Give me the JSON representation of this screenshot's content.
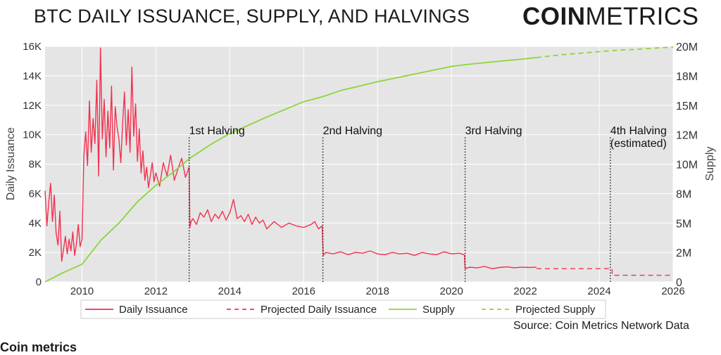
{
  "header": {
    "title": "BTC DAILY ISSUANCE, SUPPLY, AND HALVINGS",
    "logo_bold": "COIN",
    "logo_light": "METRICS"
  },
  "footer": {
    "source": "Source: Coin Metrics Network Data",
    "cut_text": "Coin metrics"
  },
  "colors": {
    "issuance": "#f2314f",
    "supply": "#8ed43a",
    "plot_bg": "#e5e5e5",
    "grid": "#ffffff",
    "halving_line": "#1a1a1a"
  },
  "chart_data": {
    "type": "line",
    "title": "BTC DAILY ISSUANCE, SUPPLY, AND HALVINGS",
    "xlabel": "",
    "ylabel": "Daily Issuance",
    "y2label": "Supply",
    "xlim": [
      2009,
      2026
    ],
    "ylim": [
      0,
      16000
    ],
    "y2lim": [
      0,
      20000000
    ],
    "x_ticks": [
      2010,
      2012,
      2014,
      2016,
      2018,
      2020,
      2022,
      2024,
      2026
    ],
    "x_tick_labels": [
      "2010",
      "2012",
      "2014",
      "2016",
      "2018",
      "2020",
      "2022",
      "2024",
      "2026"
    ],
    "y_ticks": [
      0,
      2000,
      4000,
      6000,
      8000,
      10000,
      12000,
      14000,
      16000
    ],
    "y_tick_labels": [
      "0",
      "2K",
      "4K",
      "6K",
      "8K",
      "10K",
      "12K",
      "14K",
      "16K"
    ],
    "y2_ticks": [
      0,
      2500000,
      5000000,
      7500000,
      10000000,
      12500000,
      15000000,
      17500000,
      20000000
    ],
    "y2_tick_labels": [
      "0",
      "2M",
      "5M",
      "8M",
      "10M",
      "12M",
      "15M",
      "18M",
      "20M"
    ],
    "grid": true,
    "legend_position": "bottom",
    "legend": [
      "Daily Issuance",
      "Projected Daily Issuance",
      "Supply",
      "Projected Supply"
    ],
    "series": [
      {
        "name": "Daily Issuance",
        "axis": "left",
        "style": "solid",
        "x": [
          2009.0,
          2009.05,
          2009.1,
          2009.15,
          2009.2,
          2009.25,
          2009.3,
          2009.35,
          2009.4,
          2009.45,
          2009.5,
          2009.55,
          2009.6,
          2009.65,
          2009.7,
          2009.75,
          2009.8,
          2009.85,
          2009.9,
          2009.95,
          2010.0,
          2010.05,
          2010.1,
          2010.15,
          2010.2,
          2010.25,
          2010.3,
          2010.35,
          2010.4,
          2010.45,
          2010.5,
          2010.55,
          2010.6,
          2010.65,
          2010.7,
          2010.75,
          2010.8,
          2010.85,
          2010.9,
          2010.95,
          2011.0,
          2011.05,
          2011.1,
          2011.15,
          2011.2,
          2011.25,
          2011.3,
          2011.35,
          2011.4,
          2011.45,
          2011.5,
          2011.55,
          2011.6,
          2011.65,
          2011.7,
          2011.75,
          2011.8,
          2011.85,
          2011.9,
          2011.95,
          2012.0,
          2012.1,
          2012.2,
          2012.3,
          2012.4,
          2012.5,
          2012.6,
          2012.7,
          2012.8,
          2012.9,
          2012.92,
          2012.95,
          2013.0,
          2013.1,
          2013.2,
          2013.3,
          2013.4,
          2013.5,
          2013.6,
          2013.7,
          2013.8,
          2013.9,
          2014.0,
          2014.1,
          2014.2,
          2014.3,
          2014.4,
          2014.5,
          2014.6,
          2014.7,
          2014.8,
          2014.9,
          2015.0,
          2015.2,
          2015.4,
          2015.6,
          2015.8,
          2016.0,
          2016.2,
          2016.3,
          2016.4,
          2016.5,
          2016.53,
          2016.6,
          2016.8,
          2017.0,
          2017.2,
          2017.4,
          2017.6,
          2017.8,
          2018.0,
          2018.2,
          2018.4,
          2018.6,
          2018.8,
          2019.0,
          2019.2,
          2019.4,
          2019.6,
          2019.8,
          2020.0,
          2020.2,
          2020.35,
          2020.37,
          2020.5,
          2020.7,
          2020.9,
          2021.1,
          2021.3,
          2021.5,
          2021.7,
          2021.9,
          2022.1,
          2022.3
        ],
        "values": [
          6200,
          3800,
          5400,
          6700,
          4100,
          5900,
          3300,
          2500,
          4800,
          1400,
          2200,
          3100,
          1900,
          2900,
          2100,
          3400,
          1800,
          2600,
          3900,
          2400,
          2900,
          8600,
          10200,
          7900,
          12300,
          8800,
          11100,
          9400,
          13700,
          7200,
          15900,
          9700,
          12400,
          8500,
          11600,
          9100,
          13300,
          7600,
          11900,
          10500,
          9700,
          8100,
          10800,
          12900,
          9300,
          11700,
          8800,
          14600,
          9900,
          12100,
          8200,
          10400,
          7400,
          8900,
          6900,
          7800,
          6400,
          7200,
          8100,
          6800,
          7400,
          6500,
          8100,
          7200,
          8600,
          6900,
          7700,
          8400,
          7100,
          7800,
          3700,
          4100,
          4300,
          3900,
          4700,
          4400,
          4900,
          4100,
          4600,
          4300,
          4800,
          4200,
          4700,
          5600,
          4300,
          4500,
          4100,
          4600,
          3900,
          4400,
          4000,
          4200,
          3600,
          4100,
          3700,
          4000,
          3800,
          3700,
          3900,
          4100,
          3600,
          3800,
          1800,
          2000,
          1900,
          2050,
          1850,
          2000,
          1950,
          2100,
          1900,
          1850,
          2000,
          1900,
          1950,
          1800,
          2000,
          1900,
          1850,
          2050,
          1900,
          1950,
          1850,
          900,
          1000,
          950,
          1050,
          900,
          980,
          1020,
          960,
          1000,
          980,
          1000
        ]
      },
      {
        "name": "Projected Daily Issuance",
        "axis": "left",
        "style": "dashed",
        "x": [
          2022.3,
          2024.35,
          2024.35,
          2026.0
        ],
        "values": [
          900,
          900,
          450,
          450
        ]
      },
      {
        "name": "Supply",
        "axis": "left-scaled-right",
        "style": "solid",
        "x": [
          2009.0,
          2009.5,
          2010.0,
          2010.5,
          2011.0,
          2011.5,
          2012.0,
          2012.5,
          2012.92,
          2013.5,
          2014.0,
          2015.0,
          2016.0,
          2016.53,
          2017.0,
          2018.0,
          2019.0,
          2020.0,
          2020.37,
          2021.0,
          2022.0,
          2022.3
        ],
        "values": [
          0,
          800000,
          1500000,
          3500000,
          5000000,
          6800000,
          8200000,
          9400000,
          10500000,
          11700000,
          12600000,
          14000000,
          15300000,
          15750000,
          16250000,
          17000000,
          17650000,
          18300000,
          18450000,
          18650000,
          18950000,
          19050000
        ]
      },
      {
        "name": "Projected Supply",
        "axis": "left-scaled-right",
        "style": "dashed",
        "x": [
          2022.3,
          2023.0,
          2024.0,
          2024.35,
          2025.0,
          2026.0
        ],
        "values": [
          19050000,
          19300000,
          19550000,
          19650000,
          19750000,
          19950000
        ]
      }
    ],
    "annotations": [
      {
        "label": "1st Halving",
        "x": 2012.9
      },
      {
        "label": "2nd Halving",
        "x": 2016.52
      },
      {
        "label": "3rd Halving",
        "x": 2020.37
      },
      {
        "label": "4th Halving",
        "label2": "(estimated)",
        "x": 2024.3
      }
    ]
  }
}
